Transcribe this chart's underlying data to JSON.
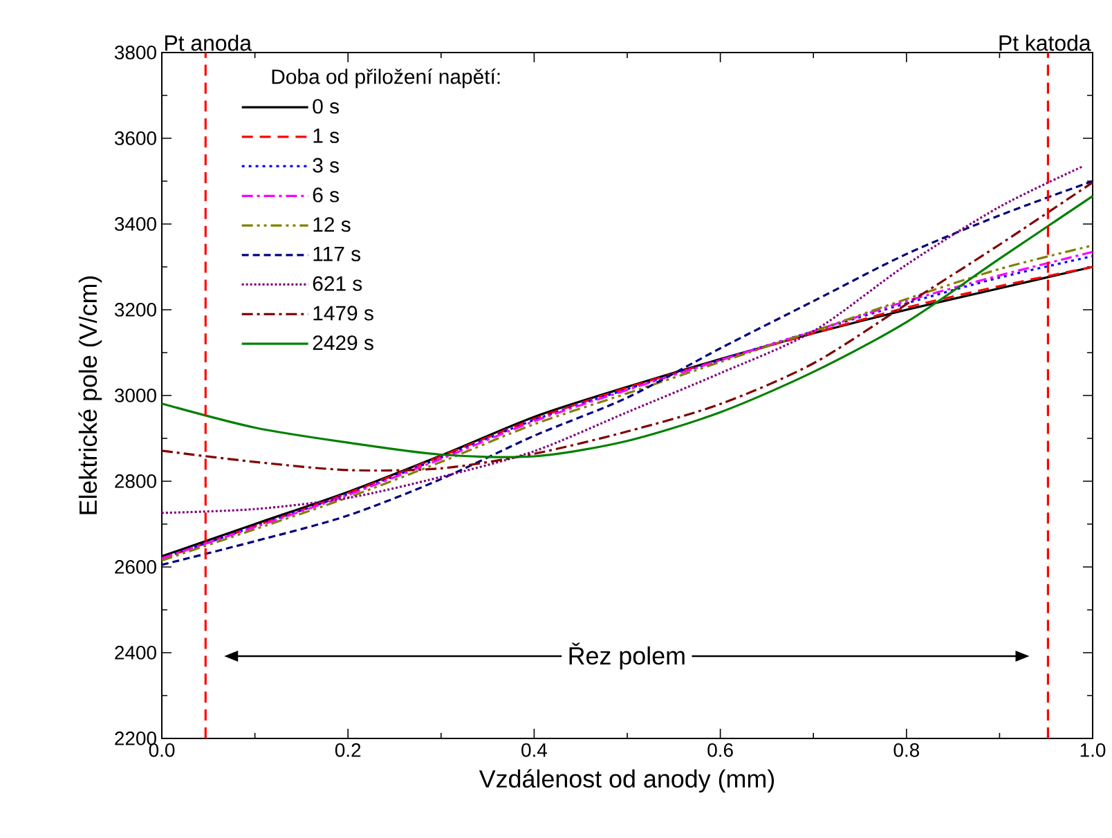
{
  "chart_data": {
    "type": "line",
    "xlabel": "Vzdálenost od anody (mm)",
    "ylabel": "Elektrické pole (V/cm)",
    "legend_title": "Doba od přiložení napětí:",
    "legend": "top left",
    "xlim": [
      0,
      1
    ],
    "ylim": [
      2200,
      3800
    ],
    "xticks": [
      {
        "value": 0,
        "label": "0.0"
      },
      0.2,
      0.4,
      0.6,
      0.8,
      {
        "value": 1,
        "label": "1.0"
      }
    ],
    "yticks": [
      2200,
      2400,
      2600,
      2800,
      3000,
      3200,
      3400,
      3600,
      3800
    ],
    "x": [
      0,
      0.1,
      0.2,
      0.3,
      0.4,
      0.5,
      0.6,
      0.7,
      0.8,
      0.9,
      1.0
    ],
    "series": [
      {
        "name": "0 s",
        "color": "#000000",
        "line_style": "solid",
        "values": [
          2625,
          2700,
          2775,
          2860,
          2950,
          3020,
          3085,
          3145,
          3200,
          3250,
          3300
        ]
      },
      {
        "name": "1 s",
        "color": "#ff0000",
        "line_style": "dashed",
        "values": [
          2620,
          2695,
          2772,
          2858,
          2945,
          3018,
          3083,
          3145,
          3205,
          3255,
          3300
        ]
      },
      {
        "name": "3 s",
        "color": "#0000ff",
        "line_style": "dotted",
        "values": [
          2620,
          2695,
          2770,
          2855,
          2943,
          3015,
          3083,
          3150,
          3215,
          3275,
          3325
        ]
      },
      {
        "name": "6 s",
        "color": "#ff00ff",
        "line_style": "dashdot",
        "values": [
          2620,
          2693,
          2768,
          2852,
          2940,
          3013,
          3082,
          3150,
          3220,
          3280,
          3335
        ]
      },
      {
        "name": "12 s",
        "color": "#808000",
        "line_style": "dashdotdot",
        "values": [
          2615,
          2688,
          2762,
          2845,
          2933,
          3005,
          3078,
          3150,
          3225,
          3295,
          3350
        ]
      },
      {
        "name": "117 s",
        "color": "#000080",
        "line_style": "shortdashed",
        "values": [
          2605,
          2660,
          2720,
          2805,
          2906,
          2995,
          3110,
          3220,
          3330,
          3420,
          3500
        ]
      },
      {
        "name": "621 s",
        "color": "#800080",
        "line_style": "denselydotted",
        "x": [
          0,
          0.1,
          0.2,
          0.3,
          0.4,
          0.5,
          0.6,
          0.7,
          0.8,
          0.9,
          0.99
        ],
        "values": [
          2726,
          2735,
          2761,
          2810,
          2870,
          2961,
          3052,
          3150,
          3305,
          3440,
          3535
        ]
      },
      {
        "name": "1479 s",
        "color": "#800000",
        "line_style": "dashdot",
        "values": [
          2871,
          2845,
          2826,
          2830,
          2864,
          2916,
          2980,
          3075,
          3213,
          3352,
          3497
        ]
      },
      {
        "name": "2429 s",
        "color": "#008000",
        "line_style": "solid",
        "values": [
          2981,
          2925,
          2890,
          2862,
          2858,
          2894,
          2961,
          3055,
          3171,
          3319,
          3465
        ]
      }
    ],
    "ref_lines": [
      {
        "axis": "x",
        "value": 0.047,
        "label": "Pt anoda",
        "color": "#ff0000",
        "line_style": "dashed"
      },
      {
        "axis": "x",
        "value": 0.952,
        "label": "Pt katoda",
        "color": "#ff0000",
        "line_style": "dashed"
      }
    ],
    "annotations": [
      "Řez polem"
    ]
  }
}
